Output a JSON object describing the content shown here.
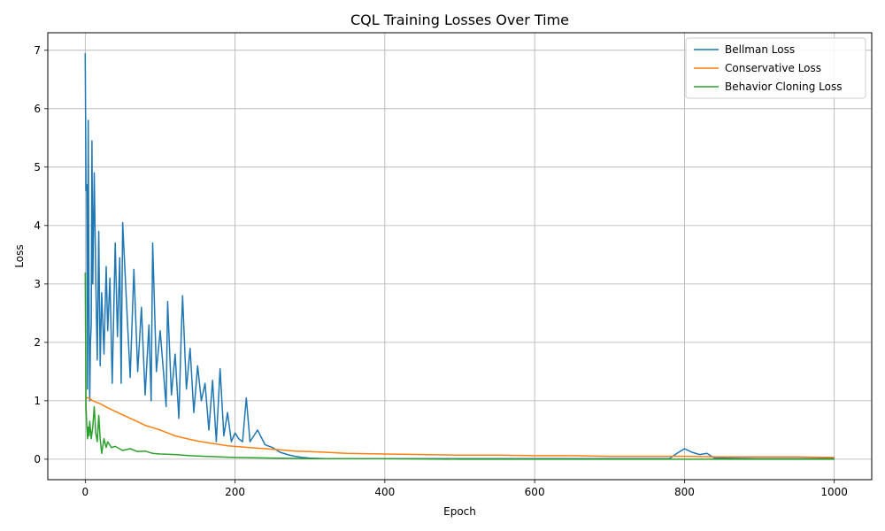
{
  "chart_data": {
    "type": "line",
    "title": "CQL Training Losses Over Time",
    "xlabel": "Epoch",
    "ylabel": "Loss",
    "xlim": [
      -50,
      1050
    ],
    "ylim": [
      -0.35,
      7.3
    ],
    "xticks": [
      0,
      200,
      400,
      600,
      800,
      1000
    ],
    "yticks": [
      0,
      1,
      2,
      3,
      4,
      5,
      6,
      7
    ],
    "grid": true,
    "legend_position": "top-right",
    "series": [
      {
        "name": "Bellman Loss",
        "color": "#1f77b4",
        "x": [
          0,
          1,
          2,
          3,
          4,
          5,
          6,
          7,
          8,
          9,
          10,
          12,
          14,
          16,
          18,
          20,
          22,
          25,
          28,
          30,
          33,
          36,
          40,
          43,
          46,
          48,
          50,
          55,
          60,
          65,
          70,
          75,
          80,
          85,
          88,
          90,
          95,
          100,
          105,
          108,
          110,
          115,
          120,
          125,
          128,
          130,
          135,
          140,
          145,
          150,
          155,
          160,
          165,
          170,
          175,
          180,
          185,
          190,
          195,
          200,
          205,
          210,
          215,
          220,
          230,
          240,
          250,
          260,
          270,
          280,
          290,
          300,
          320,
          350,
          400,
          500,
          600,
          700,
          780,
          790,
          800,
          810,
          820,
          830,
          840,
          900,
          1000
        ],
        "values": [
          6.95,
          4.6,
          4.7,
          1.2,
          5.8,
          2.6,
          1.0,
          2.0,
          2.3,
          5.45,
          3.0,
          4.9,
          3.1,
          1.7,
          3.9,
          1.6,
          2.85,
          1.8,
          3.3,
          2.2,
          3.1,
          1.3,
          3.7,
          2.1,
          3.45,
          1.3,
          4.05,
          2.7,
          1.4,
          3.25,
          1.5,
          2.6,
          1.1,
          2.3,
          1.0,
          3.7,
          1.5,
          2.2,
          1.4,
          0.9,
          2.7,
          1.1,
          1.8,
          0.7,
          2.1,
          2.8,
          1.2,
          1.9,
          0.8,
          1.6,
          1.0,
          1.3,
          0.5,
          1.35,
          0.3,
          1.55,
          0.4,
          0.8,
          0.3,
          0.45,
          0.35,
          0.3,
          1.05,
          0.3,
          0.5,
          0.25,
          0.2,
          0.12,
          0.08,
          0.05,
          0.03,
          0.02,
          0.01,
          0.01,
          0.01,
          0.01,
          0.01,
          0.01,
          0.01,
          0.1,
          0.18,
          0.12,
          0.08,
          0.1,
          0.02,
          0.01,
          0.01
        ]
      },
      {
        "name": "Conservative Loss",
        "color": "#ff7f0e",
        "x": [
          0,
          5,
          10,
          20,
          30,
          40,
          50,
          60,
          70,
          80,
          90,
          100,
          110,
          120,
          130,
          140,
          150,
          160,
          170,
          180,
          190,
          200,
          220,
          240,
          260,
          280,
          300,
          320,
          350,
          400,
          450,
          500,
          550,
          600,
          650,
          700,
          750,
          800,
          850,
          900,
          950,
          1000
        ],
        "values": [
          1.05,
          1.05,
          1.0,
          0.95,
          0.88,
          0.82,
          0.76,
          0.7,
          0.64,
          0.58,
          0.54,
          0.5,
          0.45,
          0.4,
          0.37,
          0.34,
          0.31,
          0.29,
          0.27,
          0.25,
          0.23,
          0.22,
          0.2,
          0.18,
          0.16,
          0.14,
          0.13,
          0.12,
          0.1,
          0.09,
          0.08,
          0.07,
          0.07,
          0.06,
          0.06,
          0.05,
          0.05,
          0.05,
          0.04,
          0.04,
          0.04,
          0.03
        ]
      },
      {
        "name": "Behavior Cloning Loss",
        "color": "#2ca02c",
        "x": [
          0,
          1,
          2,
          3,
          4,
          5,
          6,
          8,
          10,
          12,
          14,
          16,
          18,
          20,
          22,
          25,
          28,
          30,
          35,
          40,
          50,
          60,
          70,
          80,
          90,
          100,
          120,
          140,
          160,
          180,
          200,
          250,
          300,
          350,
          400,
          500,
          600,
          700,
          800,
          900,
          1000
        ],
        "values": [
          3.2,
          0.9,
          0.6,
          0.35,
          0.55,
          0.4,
          0.65,
          0.35,
          0.55,
          0.9,
          0.45,
          0.3,
          0.75,
          0.35,
          0.1,
          0.35,
          0.2,
          0.3,
          0.2,
          0.22,
          0.15,
          0.18,
          0.13,
          0.14,
          0.1,
          0.09,
          0.08,
          0.06,
          0.05,
          0.04,
          0.03,
          0.02,
          0.01,
          0.01,
          0.01,
          0.0,
          0.0,
          0.0,
          0.0,
          0.0,
          0.0
        ]
      }
    ]
  }
}
